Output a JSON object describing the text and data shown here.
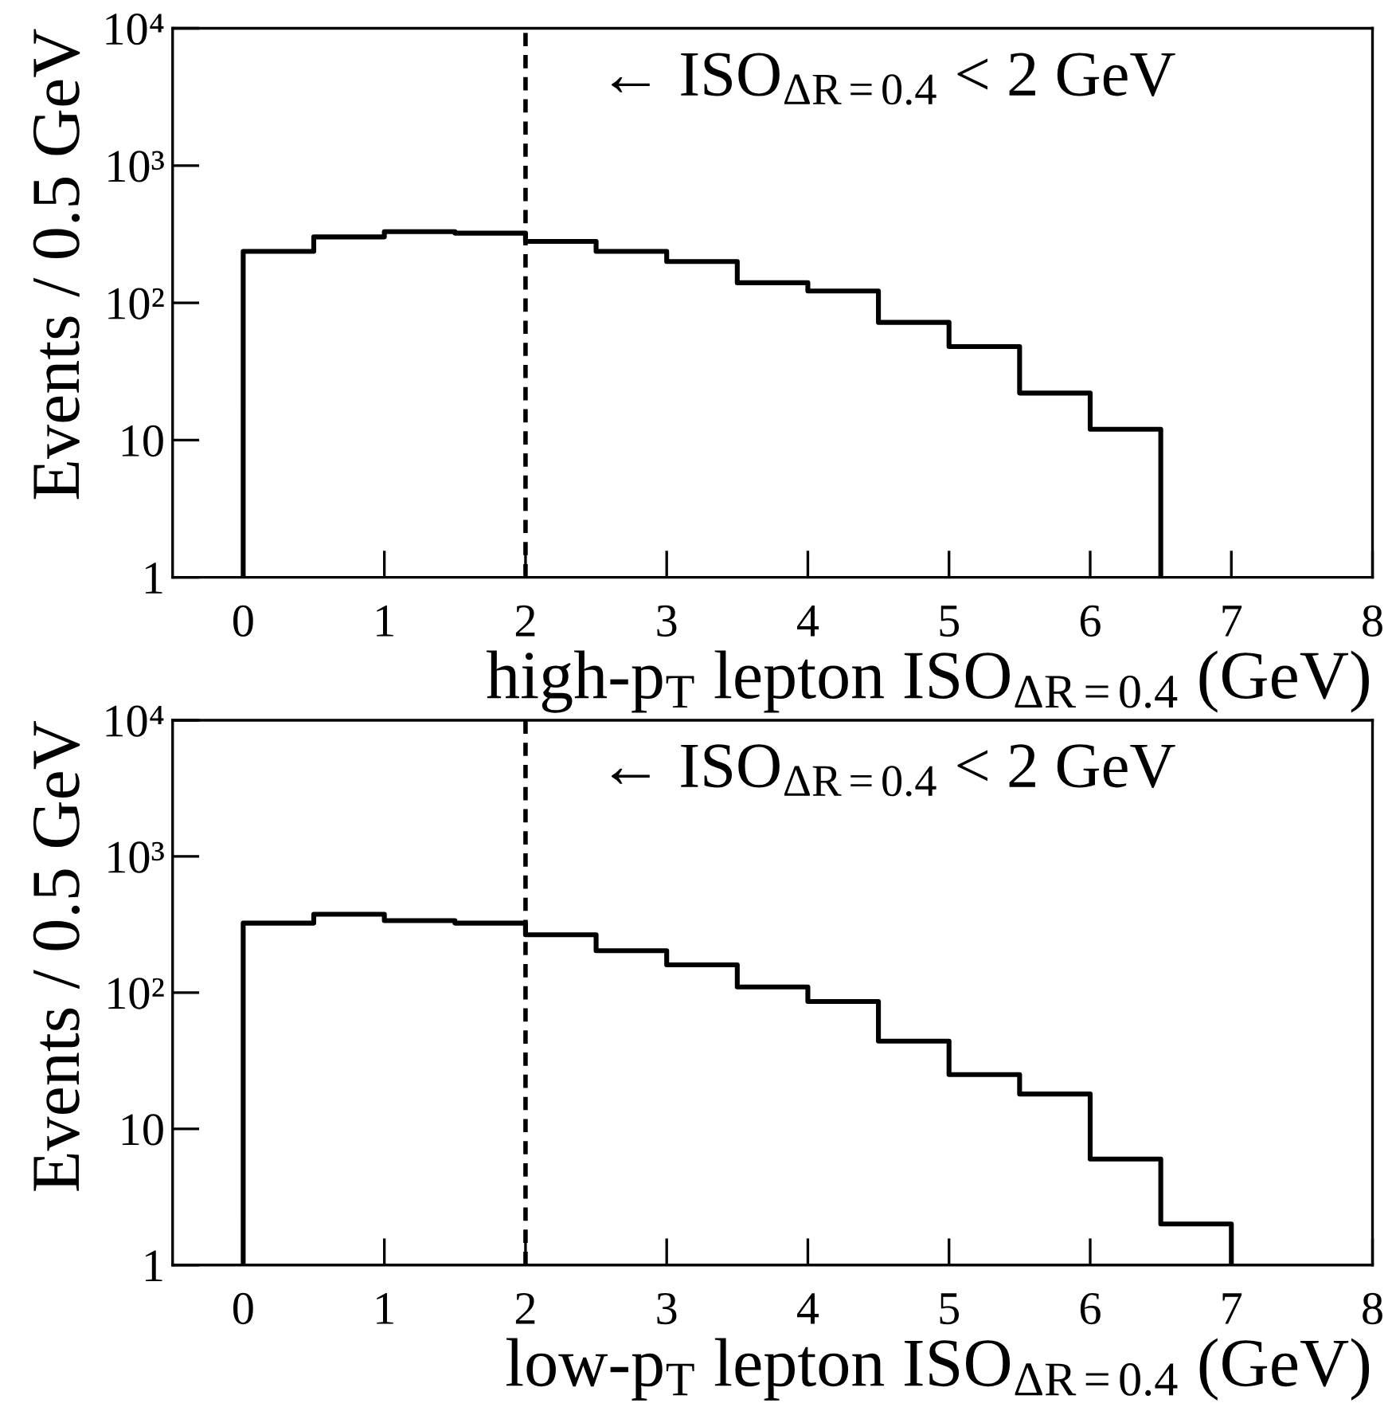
{
  "chart_data": [
    {
      "type": "histogram",
      "bins": [
        0,
        0.5,
        1,
        1.5,
        2,
        2.5,
        3,
        3.5,
        4,
        4.5,
        5,
        5.5,
        6,
        6.5
      ],
      "values": [
        237,
        302,
        330,
        322,
        280,
        237,
        200,
        140,
        122,
        72,
        48,
        22,
        12
      ],
      "color": "#000000",
      "xlabel": "high-p$_{T}$ lepton ISO$_{ΔR=0.4}$ (GeV)",
      "ylabel": "Events / 0.5 GeV",
      "annotations": [
        "← ISO$_{ΔR=0.4}$ < 2 GeV"
      ],
      "ref_lines": [
        {
          "axis": "x",
          "value": 2,
          "line_style": "dashed",
          "color": "#000000"
        }
      ],
      "log": "y",
      "xlim": [
        -0.5,
        8
      ],
      "xticks": [
        0,
        1,
        2,
        3,
        4,
        5,
        6,
        7,
        8
      ],
      "ylim": [
        1,
        10000
      ],
      "yticks": [
        1,
        10,
        {
          "value": 100,
          "label": "10²"
        },
        {
          "value": 1000,
          "label": "10³"
        },
        {
          "value": 10000,
          "label": "10⁴"
        }
      ],
      "grid": false
    },
    {
      "type": "histogram",
      "bins": [
        0,
        0.5,
        1,
        1.5,
        2,
        2.5,
        3,
        3.5,
        4,
        4.5,
        5,
        5.5,
        6,
        6.5,
        7
      ],
      "values": [
        324,
        376,
        338,
        324,
        266,
        203,
        160,
        110,
        86,
        44,
        25,
        18,
        6,
        2
      ],
      "color": "#000000",
      "xlabel": "low-p$_{T}$ lepton ISO$_{ΔR=0.4}$ (GeV)",
      "ylabel": "Events / 0.5 GeV",
      "annotations": [
        "← ISO$_{ΔR=0.4}$ < 2 GeV"
      ],
      "ref_lines": [
        {
          "axis": "x",
          "value": 2,
          "line_style": "dashed",
          "color": "#000000"
        }
      ],
      "log": "y",
      "xlim": [
        -0.5,
        8
      ],
      "xticks": [
        0,
        1,
        2,
        3,
        4,
        5,
        6,
        7,
        8
      ],
      "ylim": [
        1,
        10000
      ],
      "yticks": [
        1,
        10,
        {
          "value": 100,
          "label": "10²"
        },
        {
          "value": 1000,
          "label": "10³"
        },
        {
          "value": 10000,
          "label": "10⁴"
        }
      ],
      "grid": false
    }
  ]
}
